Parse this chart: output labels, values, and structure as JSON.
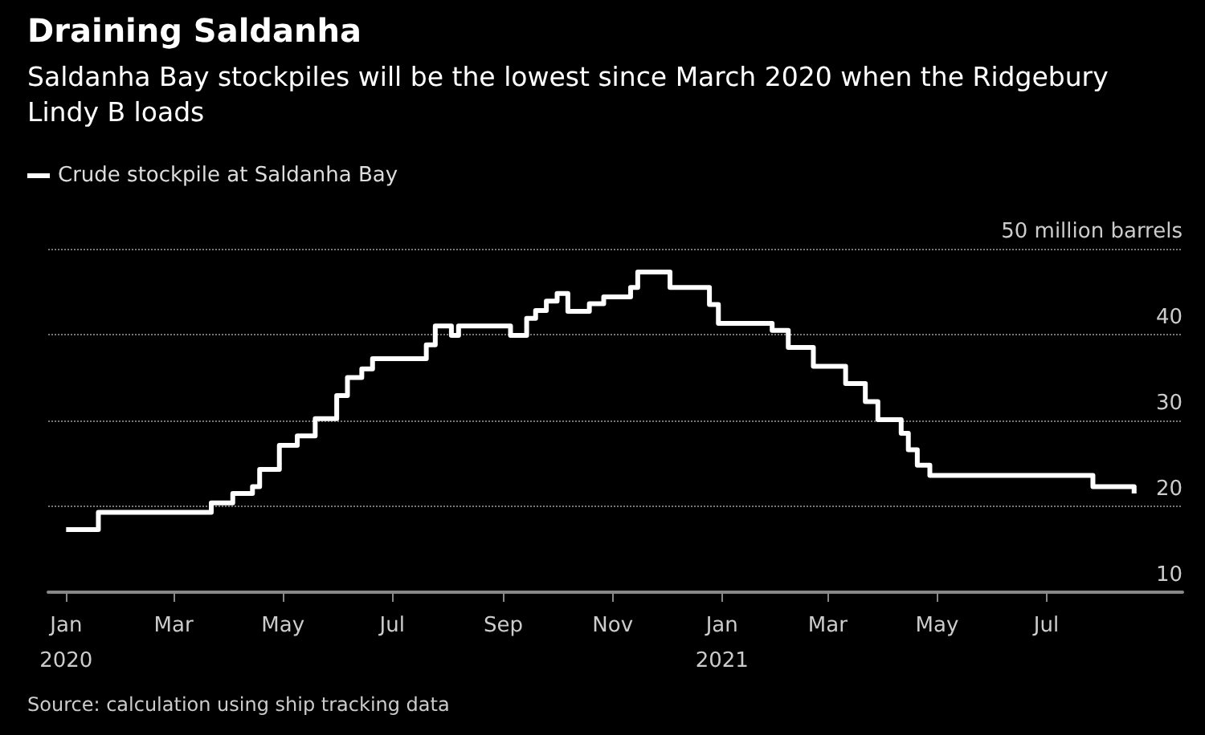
{
  "chart_data": {
    "type": "step",
    "title": "Draining Saldanha",
    "subtitle": "Saldanha Bay stockpiles will be the lowest since March 2020 when the Ridgebury Lindy B loads",
    "x": [
      "2020-01-01",
      "2020-01-19",
      "2020-03-22",
      "2020-04-03",
      "2020-04-14",
      "2020-04-18",
      "2020-04-29",
      "2020-05-09",
      "2020-05-19",
      "2020-05-31",
      "2020-06-06",
      "2020-06-14",
      "2020-06-20",
      "2020-07-20",
      "2020-07-25",
      "2020-08-03",
      "2020-08-07",
      "2020-09-05",
      "2020-09-14",
      "2020-09-19",
      "2020-09-25",
      "2020-10-01",
      "2020-10-07",
      "2020-10-19",
      "2020-10-27",
      "2020-11-11",
      "2020-11-15",
      "2020-12-03",
      "2020-12-25",
      "2020-12-30",
      "2021-01-29",
      "2021-02-07",
      "2021-02-21",
      "2021-03-11",
      "2021-03-22",
      "2021-03-29",
      "2021-04-11",
      "2021-04-15",
      "2021-04-20",
      "2021-04-27",
      "2021-07-27",
      "2021-08-19"
    ],
    "series": [
      {
        "name": "Crude stockpile at Saldanha Bay",
        "color": "#ffffff",
        "values": [
          17.3,
          19.3,
          20.4,
          21.5,
          22.3,
          24.3,
          27.1,
          28.2,
          30.2,
          32.9,
          35.0,
          36.0,
          37.2,
          38.8,
          41.0,
          39.9,
          41.0,
          39.9,
          41.9,
          42.8,
          43.9,
          44.8,
          42.7,
          43.6,
          44.4,
          45.5,
          47.3,
          45.5,
          43.5,
          41.3,
          40.5,
          38.5,
          36.3,
          34.3,
          32.2,
          30.1,
          28.5,
          26.6,
          24.8,
          23.6,
          22.3,
          21.5
        ]
      }
    ],
    "xlim": [
      "2019-12-22",
      "2021-09-15"
    ],
    "xticks": [
      {
        "value": "2020-01-01",
        "label": "Jan\n2020"
      },
      {
        "value": "2020-03-01",
        "label": "Mar"
      },
      {
        "value": "2020-05-01",
        "label": "May"
      },
      {
        "value": "2020-07-01",
        "label": "Jul"
      },
      {
        "value": "2020-09-01",
        "label": "Sep"
      },
      {
        "value": "2020-11-01",
        "label": "Nov"
      },
      {
        "value": "2021-01-01",
        "label": "Jan\n2021"
      },
      {
        "value": "2021-03-01",
        "label": "Mar"
      },
      {
        "value": "2021-05-01",
        "label": "May"
      },
      {
        "value": "2021-07-01",
        "label": "Jul"
      }
    ],
    "ylim": [
      10,
      50
    ],
    "yticks": [
      10,
      20,
      30,
      40,
      {
        "value": 50,
        "label": "50 million barrels"
      }
    ],
    "grid": "y",
    "legend": "top left",
    "annotations": [
      "Source: calculation using ship tracking data"
    ]
  }
}
